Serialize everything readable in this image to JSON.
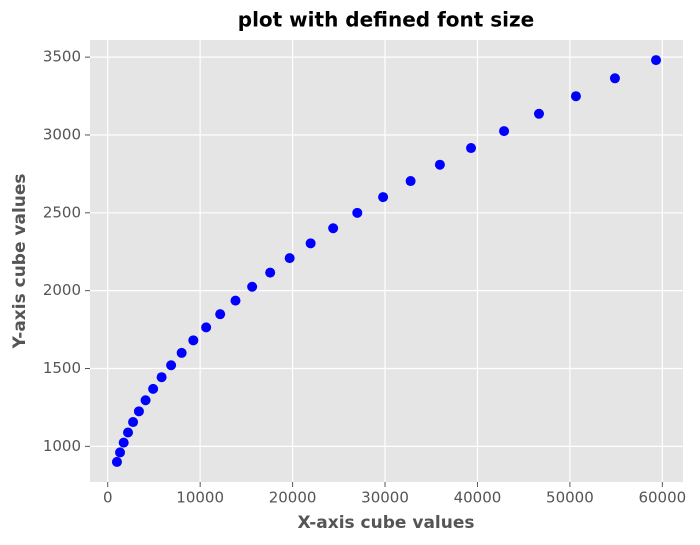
{
  "chart_data": {
    "type": "scatter",
    "title": "plot with defined font size",
    "x_label": "X-axis cube values",
    "y_label": "Y-axis cube values",
    "x": [
      1000,
      1331,
      1728,
      2197,
      2744,
      3375,
      4096,
      4913,
      5832,
      6859,
      8000,
      9261,
      10648,
      12167,
      13824,
      15625,
      17576,
      19683,
      21952,
      24389,
      27000,
      29791,
      32768,
      35937,
      39304,
      42875,
      46656,
      50653,
      54872,
      59319
    ],
    "values": [
      900,
      961,
      1024,
      1089,
      1156,
      1225,
      1296,
      1369,
      1444,
      1521,
      1600,
      1681,
      1764,
      1849,
      1936,
      2025,
      2116,
      2209,
      2304,
      2401,
      2500,
      2601,
      2704,
      2809,
      2916,
      3025,
      3136,
      3249,
      3364,
      3481
    ],
    "color": "#0000ff",
    "xlim": [
      -1916,
      62235
    ],
    "ylim": [
      771,
      3610
    ],
    "xticks": [
      0,
      10000,
      20000,
      30000,
      40000,
      50000,
      60000
    ],
    "yticks": [
      1000,
      1500,
      2000,
      2500,
      3000,
      3500
    ],
    "grid": true
  }
}
